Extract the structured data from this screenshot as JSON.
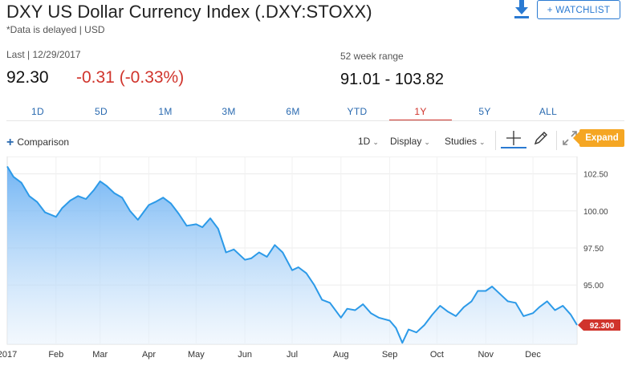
{
  "header": {
    "title": "DXY US Dollar Currency Index (.DXY:STOXX)",
    "subtitle": "*Data is delayed | USD",
    "watchlist_label": "+ WATCHLIST",
    "download_icon": "download-icon"
  },
  "quote": {
    "last_label": "Last | 12/29/2017",
    "last_price": "92.30",
    "change": "-0.31 (-0.33%)",
    "range_label": "52 week range",
    "range_value": "91.01 - 103.82"
  },
  "colors": {
    "accent_blue": "#2a7ad2",
    "negative_red": "#d0342c",
    "expand_orange": "#f5a623",
    "line_blue": "#2c9ae8"
  },
  "tabs": [
    {
      "label": "1D",
      "active": false
    },
    {
      "label": "5D",
      "active": false
    },
    {
      "label": "1M",
      "active": false
    },
    {
      "label": "3M",
      "active": false
    },
    {
      "label": "6M",
      "active": false
    },
    {
      "label": "YTD",
      "active": false
    },
    {
      "label": "1Y",
      "active": true
    },
    {
      "label": "5Y",
      "active": false
    },
    {
      "label": "ALL",
      "active": false
    }
  ],
  "toolbar": {
    "comparison_label": "Comparison",
    "interval_label": "1D",
    "display_label": "Display",
    "studies_label": "Studies",
    "expand_label": "Expand"
  },
  "chart_data": {
    "type": "area",
    "title": "",
    "xlabel": "",
    "ylabel": "",
    "ylim": [
      91.0,
      103.4
    ],
    "xlim": [
      "2017-01-01",
      "2017-12-29"
    ],
    "y_ticks": [
      "102.50",
      "100.00",
      "97.50",
      "95.00"
    ],
    "x_ticks": [
      {
        "label": "2017",
        "date": "2017-01-01"
      },
      {
        "label": "Feb",
        "date": "2017-02-01"
      },
      {
        "label": "Mar",
        "date": "2017-03-01"
      },
      {
        "label": "Apr",
        "date": "2017-04-01"
      },
      {
        "label": "May",
        "date": "2017-05-01"
      },
      {
        "label": "Jun",
        "date": "2017-06-01"
      },
      {
        "label": "Jul",
        "date": "2017-07-01"
      },
      {
        "label": "Aug",
        "date": "2017-08-01"
      },
      {
        "label": "Sep",
        "date": "2017-09-01"
      },
      {
        "label": "Oct",
        "date": "2017-10-01"
      },
      {
        "label": "Nov",
        "date": "2017-11-01"
      },
      {
        "label": "Dec",
        "date": "2017-12-01"
      }
    ],
    "last_value_label": "92.300",
    "series": [
      {
        "points": [
          [
            "2017-01-01",
            103.0
          ],
          [
            "2017-01-05",
            102.3
          ],
          [
            "2017-01-10",
            101.9
          ],
          [
            "2017-01-15",
            101.0
          ],
          [
            "2017-01-20",
            100.6
          ],
          [
            "2017-01-25",
            99.9
          ],
          [
            "2017-02-01",
            99.6
          ],
          [
            "2017-02-05",
            100.2
          ],
          [
            "2017-02-10",
            100.7
          ],
          [
            "2017-02-15",
            101.0
          ],
          [
            "2017-02-20",
            100.8
          ],
          [
            "2017-02-25",
            101.4
          ],
          [
            "2017-03-01",
            102.0
          ],
          [
            "2017-03-05",
            101.7
          ],
          [
            "2017-03-10",
            101.2
          ],
          [
            "2017-03-15",
            100.9
          ],
          [
            "2017-03-20",
            100.0
          ],
          [
            "2017-03-25",
            99.4
          ],
          [
            "2017-04-01",
            100.4
          ],
          [
            "2017-04-05",
            100.6
          ],
          [
            "2017-04-10",
            100.9
          ],
          [
            "2017-04-15",
            100.5
          ],
          [
            "2017-04-20",
            99.8
          ],
          [
            "2017-04-25",
            99.0
          ],
          [
            "2017-05-01",
            99.1
          ],
          [
            "2017-05-05",
            98.9
          ],
          [
            "2017-05-10",
            99.5
          ],
          [
            "2017-05-15",
            98.8
          ],
          [
            "2017-05-20",
            97.2
          ],
          [
            "2017-05-25",
            97.4
          ],
          [
            "2017-06-01",
            96.7
          ],
          [
            "2017-06-05",
            96.8
          ],
          [
            "2017-06-10",
            97.2
          ],
          [
            "2017-06-15",
            96.9
          ],
          [
            "2017-06-20",
            97.7
          ],
          [
            "2017-06-25",
            97.2
          ],
          [
            "2017-07-01",
            96.0
          ],
          [
            "2017-07-05",
            96.2
          ],
          [
            "2017-07-10",
            95.8
          ],
          [
            "2017-07-15",
            95.0
          ],
          [
            "2017-07-20",
            94.0
          ],
          [
            "2017-07-25",
            93.8
          ],
          [
            "2017-08-01",
            92.8
          ],
          [
            "2017-08-05",
            93.4
          ],
          [
            "2017-08-10",
            93.3
          ],
          [
            "2017-08-15",
            93.7
          ],
          [
            "2017-08-20",
            93.1
          ],
          [
            "2017-08-25",
            92.8
          ],
          [
            "2017-09-01",
            92.6
          ],
          [
            "2017-09-05",
            92.1
          ],
          [
            "2017-09-09",
            91.1
          ],
          [
            "2017-09-13",
            92.0
          ],
          [
            "2017-09-18",
            91.8
          ],
          [
            "2017-09-23",
            92.3
          ],
          [
            "2017-09-28",
            93.0
          ],
          [
            "2017-10-03",
            93.6
          ],
          [
            "2017-10-08",
            93.2
          ],
          [
            "2017-10-13",
            92.9
          ],
          [
            "2017-10-18",
            93.5
          ],
          [
            "2017-10-23",
            93.9
          ],
          [
            "2017-10-27",
            94.6
          ],
          [
            "2017-11-01",
            94.6
          ],
          [
            "2017-11-05",
            94.9
          ],
          [
            "2017-11-10",
            94.4
          ],
          [
            "2017-11-15",
            93.9
          ],
          [
            "2017-11-20",
            93.8
          ],
          [
            "2017-11-25",
            92.9
          ],
          [
            "2017-12-01",
            93.1
          ],
          [
            "2017-12-05",
            93.5
          ],
          [
            "2017-12-10",
            93.9
          ],
          [
            "2017-12-15",
            93.3
          ],
          [
            "2017-12-20",
            93.6
          ],
          [
            "2017-12-25",
            93.0
          ],
          [
            "2017-12-29",
            92.3
          ]
        ]
      }
    ]
  }
}
